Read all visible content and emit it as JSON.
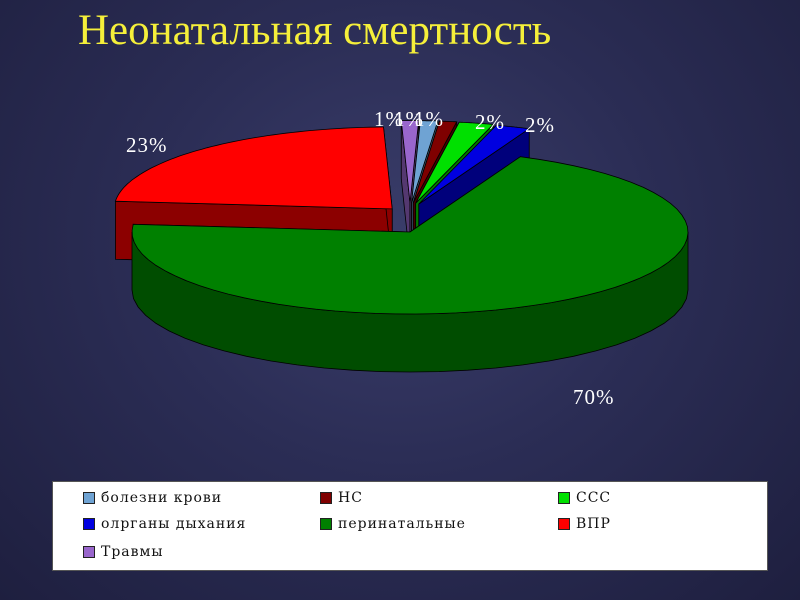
{
  "slide": {
    "title": "Неонатальная смертность"
  },
  "chart_data": {
    "type": "pie",
    "title": "",
    "categories": [
      "болезни крови",
      "НС",
      "ССС",
      "олрганы дыхания",
      "перинатальные",
      "ВПР",
      "Травмы"
    ],
    "values": [
      1,
      1,
      2,
      2,
      70,
      23,
      1
    ],
    "data_labels": [
      "1%",
      "1%",
      "2%",
      "2%",
      "70%",
      "23%",
      "1%"
    ],
    "colors": [
      "#6fa3d3",
      "#7f0000",
      "#00e000",
      "#0000e0",
      "#008000",
      "#ff0000",
      "#9966cc"
    ],
    "legend": "bottom",
    "style": "3d-exploded"
  },
  "legend": {
    "items": [
      {
        "label": "болезни крови",
        "color": "#6fa3d3"
      },
      {
        "label": "НС",
        "color": "#7f0000"
      },
      {
        "label": "ССС",
        "color": "#00e000"
      },
      {
        "label": "олрганы дыхания",
        "color": "#0000e0"
      },
      {
        "label": "перинатальные",
        "color": "#008000"
      },
      {
        "label": "ВПР",
        "color": "#ff0000"
      },
      {
        "label": "Травмы",
        "color": "#9966cc"
      }
    ]
  }
}
